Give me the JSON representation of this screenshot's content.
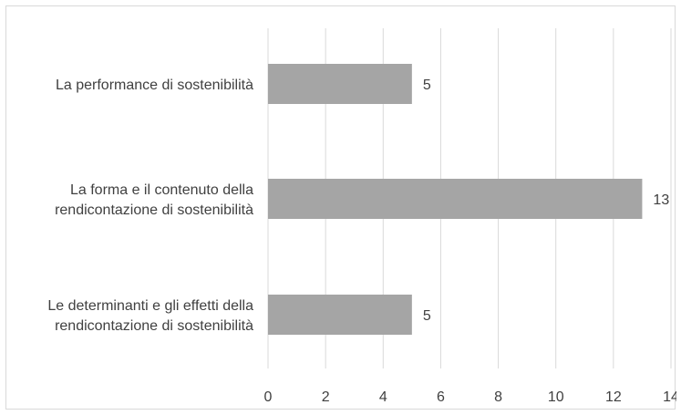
{
  "chart_data": {
    "type": "bar",
    "orientation": "horizontal",
    "categories": [
      [
        "La performance di sostenibilità"
      ],
      [
        "La forma e il contenuto della",
        "rendicontazione di sostenibilità"
      ],
      [
        "Le determinanti e gli effetti della",
        "rendicontazione di sostenibilità"
      ]
    ],
    "values": [
      5,
      13,
      5
    ],
    "data_labels": [
      "5",
      "13",
      "5"
    ],
    "xlim": [
      0,
      14
    ],
    "x_ticks": [
      "0",
      "2",
      "4",
      "6",
      "8",
      "10",
      "12",
      "14"
    ],
    "title": "",
    "xlabel": "",
    "ylabel": "",
    "grid": "vertical",
    "legend": "none",
    "colors": {
      "bar": "#a5a5a5",
      "grid": "#d9d9d9",
      "text": "#404040"
    }
  }
}
